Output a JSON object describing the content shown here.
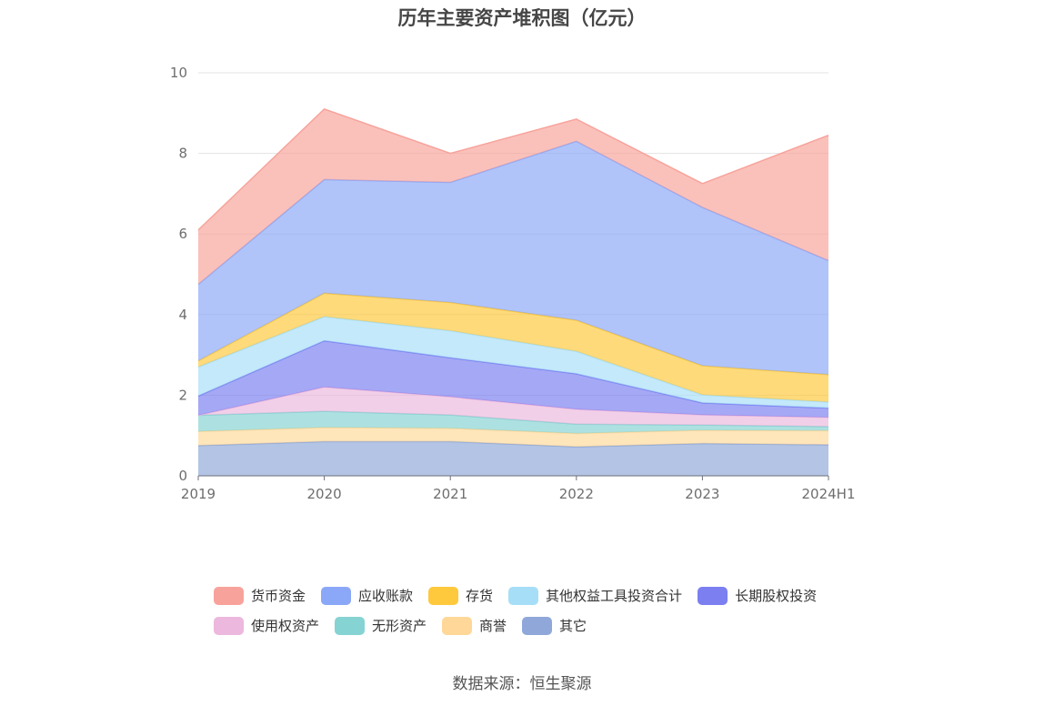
{
  "source_text": "数据来源：恒生聚源",
  "chart_data": {
    "type": "area",
    "stacked": true,
    "title": "历年主要资产堆积图（亿元）",
    "x": [
      "2019",
      "2020",
      "2021",
      "2022",
      "2023",
      "2024H1"
    ],
    "ylim": [
      0,
      10
    ],
    "yticks": [
      0,
      2,
      4,
      6,
      8,
      10
    ],
    "grid": true,
    "legend_position": "bottom",
    "series": [
      {
        "name": "其它",
        "color": "#8fa8d9",
        "values": [
          0.75,
          0.85,
          0.85,
          0.72,
          0.8,
          0.77
        ]
      },
      {
        "name": "商誉",
        "color": "#ffd899",
        "values": [
          0.35,
          0.35,
          0.33,
          0.33,
          0.33,
          0.35
        ]
      },
      {
        "name": "无形资产",
        "color": "#86d3d3",
        "values": [
          0.4,
          0.4,
          0.33,
          0.23,
          0.13,
          0.1
        ]
      },
      {
        "name": "使用权资产",
        "color": "#ecb8dd",
        "values": [
          0.0,
          0.6,
          0.45,
          0.37,
          0.25,
          0.23
        ]
      },
      {
        "name": "长期股权投资",
        "color": "#7b7ff0",
        "values": [
          0.48,
          1.15,
          0.97,
          0.88,
          0.3,
          0.23
        ]
      },
      {
        "name": "其他权益工具投资合计",
        "color": "#a7def7",
        "values": [
          0.72,
          0.6,
          0.67,
          0.56,
          0.2,
          0.15
        ]
      },
      {
        "name": "存货",
        "color": "#ffc93d",
        "values": [
          0.15,
          0.58,
          0.7,
          0.77,
          0.72,
          0.68
        ]
      },
      {
        "name": "应收账款",
        "color": "#8ba8f8",
        "values": [
          1.9,
          2.82,
          2.98,
          4.44,
          3.93,
          2.83
        ]
      },
      {
        "name": "货币资金",
        "color": "#f7a39b",
        "values": [
          1.35,
          1.75,
          0.72,
          0.55,
          0.59,
          3.11
        ]
      }
    ],
    "legend_order": [
      "货币资金",
      "应收账款",
      "存货",
      "其他权益工具投资合计",
      "长期股权投资",
      "使用权资产",
      "无形资产",
      "商誉",
      "其它"
    ]
  }
}
